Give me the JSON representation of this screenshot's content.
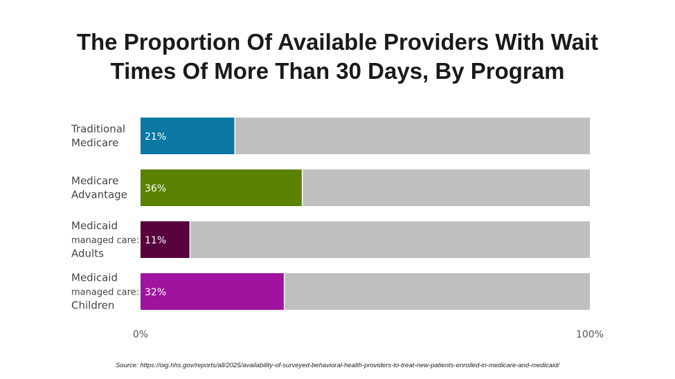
{
  "chart_data": {
    "type": "bar",
    "orientation": "horizontal",
    "stacked": true,
    "title_lines": [
      "The Proportion Of Available Providers With Wait",
      "Times Of More Than 30 Days, By Program"
    ],
    "categories": [
      {
        "lines": [
          {
            "text": "Traditional",
            "size": "large"
          },
          {
            "text": "Medicare",
            "size": "large"
          }
        ]
      },
      {
        "lines": [
          {
            "text": "Medicare",
            "size": "large"
          },
          {
            "text": "Advantage",
            "size": "large"
          }
        ]
      },
      {
        "lines": [
          {
            "text": "Medicaid",
            "size": "large"
          },
          {
            "text": "managed care:",
            "size": "small"
          },
          {
            "text": "Adults",
            "size": "large"
          }
        ]
      },
      {
        "lines": [
          {
            "text": "Medicaid",
            "size": "large"
          },
          {
            "text": "managed care:",
            "size": "small"
          },
          {
            "text": "Children",
            "size": "large"
          }
        ]
      }
    ],
    "values": [
      21,
      36,
      11,
      32
    ],
    "value_labels": [
      "21%",
      "36%",
      "11%",
      "32%"
    ],
    "colors": [
      "#0a78a3",
      "#5a8200",
      "#56003c",
      "#a0139e"
    ],
    "remainder_color": "#bfbfbf",
    "xlim": [
      0,
      100
    ],
    "x_tick_labels": [
      {
        "value": 0,
        "label": "0%"
      },
      {
        "value": 100,
        "label": "100%"
      }
    ],
    "grid": false,
    "legend": "none"
  },
  "source": "Source: https://oig.hhs.gov/reports/all/2025/availability-of-surveyed-behavioral-health-providers-to-treat-new-patients-enrolled-in-medicare-and-medicaid/"
}
